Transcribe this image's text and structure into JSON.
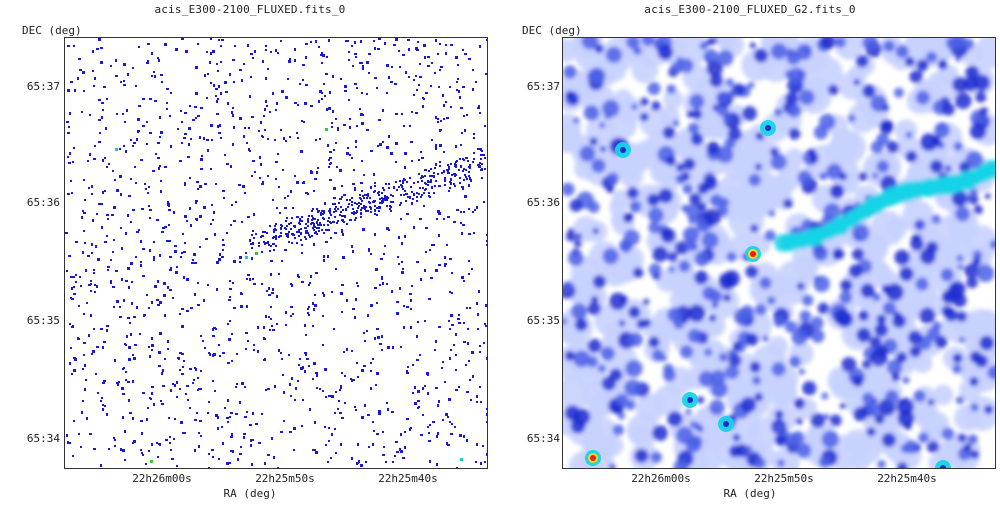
{
  "panels": [
    {
      "title": "acis_E300-2100_FLUXED.fits_0",
      "xlabel": "RA (deg)",
      "ylabel": "DEC (deg)",
      "yticks": [
        "65:37",
        "65:36",
        "65:35",
        "65:34"
      ],
      "xticks": [
        "22h26m00s",
        "22h25m50s",
        "22h25m40s"
      ],
      "style": "raw-counts",
      "colors": {
        "dot": "#1a1ad6",
        "hot": "#20c8c8",
        "hot2": "#33cc33"
      }
    },
    {
      "title": "acis_E300-2100_FLUXED_G2.fits_0",
      "xlabel": "RA (deg)",
      "ylabel": "DEC (deg)",
      "yticks": [
        "65:37",
        "65:36",
        "65:35",
        "65:34"
      ],
      "xticks": [
        "22h26m00s",
        "22h25m50s",
        "22h25m40s"
      ],
      "style": "smoothed",
      "colors": {
        "low": "#c8d2ff",
        "mid": "#4b5fe6",
        "high": "#1c2bd0",
        "jet": "#16d4e6",
        "core": "#e82020",
        "ring": "#ffd21e"
      }
    }
  ]
}
